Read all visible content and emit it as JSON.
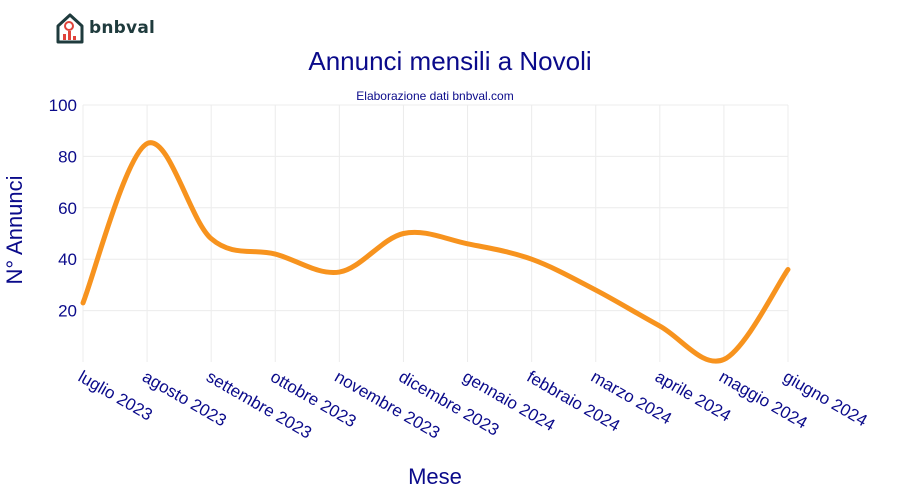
{
  "brand": {
    "name": "bnbval",
    "logo_icon": "house-chart-icon"
  },
  "chart_data": {
    "type": "line",
    "title": "Annunci mensili a Novoli",
    "subtitle": "Elaborazione dati bnbval.com",
    "xlabel": "Mese",
    "ylabel": "N° Annunci",
    "categories": [
      "luglio 2023",
      "agosto 2023",
      "settembre 2023",
      "ottobre 2023",
      "novembre 2023",
      "dicembre 2023",
      "gennaio 2024",
      "febbraio 2024",
      "marzo 2024",
      "aprile 2024",
      "maggio 2024",
      "giugno 2024"
    ],
    "series": [
      {
        "values": [
          23,
          85,
          48,
          42,
          35,
          50,
          46,
          40,
          28,
          14,
          1,
          36
        ],
        "color": "#F7931E"
      }
    ],
    "ylim": [
      0,
      100
    ],
    "yticks": [
      20,
      40,
      60,
      80,
      100
    ],
    "grid": true,
    "colors": {
      "title": "#0a0a8a",
      "axis_text": "#0a0a8a",
      "grid": "#ececec",
      "line": "#F7931E"
    }
  }
}
